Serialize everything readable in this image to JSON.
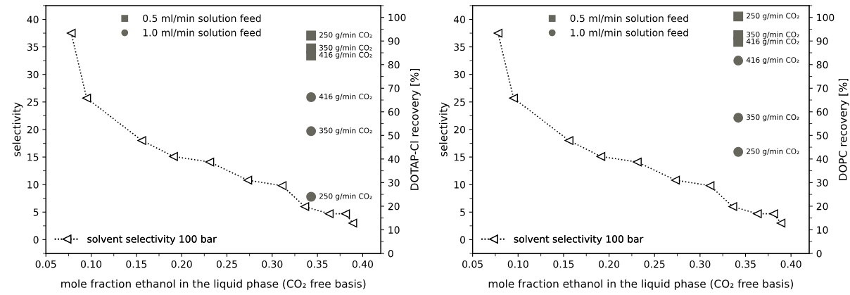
{
  "chart_data": [
    {
      "type": "line",
      "xlabel": "mole fraction ethanol in the liquid phase (CO₂ free basis)",
      "ylabel": "selectivity",
      "y2label": "DOTAP-Cl recovery [%]",
      "xlim": [
        0.05,
        0.42
      ],
      "xticks": [
        {
          "value": 0.05,
          "label": "0.05"
        },
        {
          "value": 0.1,
          "label": "0.10"
        },
        {
          "value": 0.15,
          "label": "0.15"
        },
        {
          "value": 0.2,
          "label": "0.20"
        },
        {
          "value": 0.25,
          "label": "0.25"
        },
        {
          "value": 0.3,
          "label": "0.30"
        },
        {
          "value": 0.35,
          "label": "0.35"
        },
        {
          "value": 0.4,
          "label": "0.40"
        }
      ],
      "ylim": [
        -2.5,
        42.5
      ],
      "yticks": [
        0,
        5,
        10,
        15,
        20,
        25,
        30,
        35,
        40
      ],
      "y2lim": [
        0,
        105
      ],
      "y2ticks": [
        0,
        10,
        20,
        30,
        40,
        50,
        60,
        70,
        80,
        90,
        100
      ],
      "legend": "left",
      "line_style": "dotted",
      "annotations": [
        "250 g/min CO₂",
        "350 g/min CO₂",
        "416 g/min CO₂",
        "416 g/min CO₂",
        "350 g/min CO₂",
        "250 g/min CO₂"
      ],
      "series": [
        {
          "name": "solvent selectivity 100 bar",
          "type": "line",
          "marker": "triangle",
          "color": "#000000",
          "x": [
            0.078,
            0.095,
            0.156,
            0.191,
            0.231,
            0.273,
            0.311,
            0.336,
            0.363,
            0.381,
            0.389
          ],
          "values": [
            37.5,
            25.7,
            18,
            15.1,
            14.1,
            10.8,
            9.8,
            6,
            4.7,
            4.7,
            3
          ]
        },
        {
          "name": "0.5 ml/min solution feed",
          "type": "scatter",
          "axis": "y2",
          "marker": "square",
          "color": "#66665c",
          "x": [
            0.343,
            0.343,
            0.343
          ],
          "values": [
            92.3,
            86.9,
            83.9
          ]
        },
        {
          "name": "1.0 ml/min solution feed",
          "type": "scatter",
          "axis": "y2",
          "marker": "circle",
          "color": "#66665c",
          "x": [
            0.343,
            0.343,
            0.343
          ],
          "values": [
            66.2,
            51.8,
            24
          ]
        }
      ]
    },
    {
      "type": "line",
      "xlabel": "mole fraction ethanol in the liquid phase (CO₂ free basis)",
      "ylabel": "selectivity",
      "y2label": "DOPC recovery [%]",
      "xlim": [
        0.05,
        0.42
      ],
      "xticks": [
        {
          "value": 0.05,
          "label": "0.05"
        },
        {
          "value": 0.1,
          "label": "0.10"
        },
        {
          "value": 0.15,
          "label": "0.15"
        },
        {
          "value": 0.2,
          "label": "0.20"
        },
        {
          "value": 0.25,
          "label": "0.25"
        },
        {
          "value": 0.3,
          "label": "0.30"
        },
        {
          "value": 0.35,
          "label": "0.35"
        },
        {
          "value": 0.4,
          "label": "0.40"
        }
      ],
      "ylim": [
        -2.5,
        42.5
      ],
      "yticks": [
        0,
        5,
        10,
        15,
        20,
        25,
        30,
        35,
        40
      ],
      "y2lim": [
        0,
        105
      ],
      "y2ticks": [
        0,
        10,
        20,
        30,
        40,
        50,
        60,
        70,
        80,
        90,
        100
      ],
      "legend": "left",
      "line_style": "dotted",
      "annotations": [
        "250 g/min CO₂",
        "350 g/min CO₂",
        "416 g/min CO₂",
        "416 g/min CO₂",
        "350 g/min CO₂",
        "250 g/min CO₂"
      ],
      "series": [
        {
          "name": "solvent selectivity 100 bar",
          "type": "line",
          "marker": "triangle",
          "color": "#000000",
          "x": [
            0.078,
            0.095,
            0.156,
            0.191,
            0.231,
            0.273,
            0.311,
            0.336,
            0.363,
            0.381,
            0.389
          ],
          "values": [
            37.5,
            25.7,
            18,
            15.1,
            14.1,
            10.8,
            9.8,
            6,
            4.7,
            4.7,
            3
          ]
        },
        {
          "name": "0.5 ml/min solution feed",
          "type": "scatter",
          "axis": "y2",
          "marker": "square",
          "color": "#66665c",
          "x": [
            0.342,
            0.342,
            0.342
          ],
          "values": [
            100.4,
            92.5,
            89.6
          ]
        },
        {
          "name": "1.0 ml/min solution feed",
          "type": "scatter",
          "axis": "y2",
          "marker": "circle",
          "color": "#66665c",
          "x": [
            0.342,
            0.342,
            0.342
          ],
          "values": [
            81.7,
            57.5,
            43
          ]
        }
      ]
    }
  ]
}
